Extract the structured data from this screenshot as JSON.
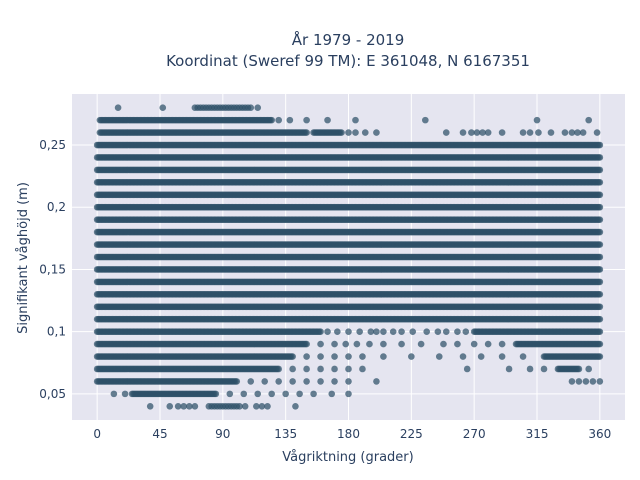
{
  "chart_data": {
    "type": "scatter",
    "title_line1": "År 1979 - 2019",
    "title_line2": "Koordinat (Sweref 99 TM): E 361048, N 6167351",
    "xlabel": "Vågriktning (grader)",
    "ylabel": "Signifikant våghöjd (m)",
    "xlim": [
      -18,
      378
    ],
    "ylim": [
      0.029,
      0.291
    ],
    "grid": true,
    "x_ticks": [
      {
        "value": 0,
        "label": "0"
      },
      {
        "value": 45,
        "label": "45"
      },
      {
        "value": 90,
        "label": "90"
      },
      {
        "value": 135,
        "label": "135"
      },
      {
        "value": 180,
        "label": "180"
      },
      {
        "value": 225,
        "label": "225"
      },
      {
        "value": 270,
        "label": "270"
      },
      {
        "value": 315,
        "label": "315"
      },
      {
        "value": 360,
        "label": "360"
      }
    ],
    "y_ticks": [
      {
        "value": 0.05,
        "label": "0,05"
      },
      {
        "value": 0.1,
        "label": "0,1"
      },
      {
        "value": 0.15,
        "label": "0,15"
      },
      {
        "value": 0.2,
        "label": "0,2"
      },
      {
        "value": 0.25,
        "label": "0,25"
      }
    ],
    "marker_color": "#2e5068",
    "background_color": "#e5e5f0",
    "rows": [
      {
        "y": 0.28,
        "x": [
          15,
          47,
          70,
          72,
          74,
          76,
          78,
          80,
          82,
          84,
          86,
          88,
          90,
          92,
          94,
          96,
          98,
          100,
          102,
          104,
          106,
          108,
          110,
          115
        ]
      },
      {
        "y": 0.27,
        "segments": [
          [
            2,
            125
          ]
        ],
        "x": [
          130,
          138,
          150,
          165,
          185,
          235,
          315,
          352
        ]
      },
      {
        "y": 0.26,
        "segments": [
          [
            2,
            150
          ],
          [
            155,
            175
          ]
        ],
        "x": [
          180,
          185,
          192,
          200,
          250,
          262,
          268,
          272,
          276,
          280,
          290,
          305,
          310,
          316,
          325,
          335,
          340,
          344,
          348,
          358
        ]
      },
      {
        "y": 0.25,
        "segments": [
          [
            0,
            360
          ]
        ]
      },
      {
        "y": 0.24,
        "segments": [
          [
            0,
            360
          ]
        ]
      },
      {
        "y": 0.23,
        "segments": [
          [
            0,
            360
          ]
        ]
      },
      {
        "y": 0.22,
        "segments": [
          [
            0,
            360
          ]
        ]
      },
      {
        "y": 0.21,
        "segments": [
          [
            0,
            360
          ]
        ]
      },
      {
        "y": 0.2,
        "segments": [
          [
            0,
            360
          ]
        ]
      },
      {
        "y": 0.19,
        "segments": [
          [
            0,
            360
          ]
        ]
      },
      {
        "y": 0.18,
        "segments": [
          [
            0,
            360
          ]
        ]
      },
      {
        "y": 0.17,
        "segments": [
          [
            0,
            360
          ]
        ]
      },
      {
        "y": 0.16,
        "segments": [
          [
            0,
            360
          ]
        ]
      },
      {
        "y": 0.15,
        "segments": [
          [
            0,
            360
          ]
        ]
      },
      {
        "y": 0.14,
        "segments": [
          [
            0,
            360
          ]
        ]
      },
      {
        "y": 0.13,
        "segments": [
          [
            0,
            360
          ]
        ]
      },
      {
        "y": 0.12,
        "segments": [
          [
            0,
            360
          ]
        ]
      },
      {
        "y": 0.11,
        "segments": [
          [
            0,
            360
          ]
        ]
      },
      {
        "y": 0.1,
        "segments": [
          [
            0,
            160
          ],
          [
            270,
            360
          ]
        ],
        "x": [
          165,
          172,
          180,
          188,
          196,
          200,
          205,
          212,
          218,
          226,
          236,
          244,
          250,
          258,
          264
        ]
      },
      {
        "y": 0.09,
        "segments": [
          [
            0,
            150
          ],
          [
            300,
            360
          ]
        ],
        "x": [
          160,
          170,
          178,
          186,
          195,
          205,
          218,
          232,
          248,
          258,
          270,
          280,
          290
        ]
      },
      {
        "y": 0.08,
        "segments": [
          [
            0,
            140
          ],
          [
            320,
            360
          ]
        ],
        "x": [
          150,
          160,
          170,
          180,
          190,
          205,
          225,
          245,
          262,
          275,
          290,
          305
        ]
      },
      {
        "y": 0.07,
        "segments": [
          [
            0,
            130
          ],
          [
            330,
            345
          ]
        ],
        "x": [
          140,
          150,
          160,
          170,
          180,
          190,
          265,
          295,
          310,
          320,
          352
        ]
      },
      {
        "y": 0.06,
        "segments": [
          [
            0,
            100
          ]
        ],
        "x": [
          110,
          120,
          130,
          140,
          150,
          160,
          170,
          180,
          200,
          340,
          345,
          350,
          355,
          360
        ]
      },
      {
        "y": 0.05,
        "segments": [
          [
            25,
            85
          ]
        ],
        "x": [
          12,
          20,
          95,
          105,
          115,
          125,
          135,
          145,
          155,
          168,
          180
        ]
      },
      {
        "y": 0.04,
        "x": [
          38,
          52,
          58,
          62,
          66,
          70,
          80,
          82,
          84,
          86,
          88,
          90,
          92,
          94,
          96,
          98,
          100,
          102,
          106,
          114,
          118,
          122,
          142
        ]
      }
    ]
  }
}
